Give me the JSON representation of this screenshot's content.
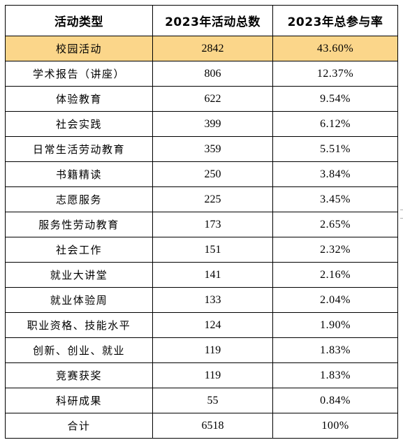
{
  "table": {
    "headers": [
      "活动类型",
      "2023年活动总数",
      "2023年总参与率"
    ],
    "rows": [
      {
        "type": "校园活动",
        "count": "2842",
        "rate": "43.60%"
      },
      {
        "type": "学术报告（讲座）",
        "count": "806",
        "rate": "12.37%"
      },
      {
        "type": "体验教育",
        "count": "622",
        "rate": "9.54%"
      },
      {
        "type": "社会实践",
        "count": "399",
        "rate": "6.12%"
      },
      {
        "type": "日常生活劳动教育",
        "count": "359",
        "rate": "5.51%"
      },
      {
        "type": "书籍精读",
        "count": "250",
        "rate": "3.84%"
      },
      {
        "type": "志愿服务",
        "count": "225",
        "rate": "3.45%"
      },
      {
        "type": "服务性劳动教育",
        "count": "173",
        "rate": "2.65%"
      },
      {
        "type": "社会工作",
        "count": "151",
        "rate": "2.32%"
      },
      {
        "type": "就业大讲堂",
        "count": "141",
        "rate": "2.16%"
      },
      {
        "type": "就业体验周",
        "count": "133",
        "rate": "2.04%"
      },
      {
        "type": "职业资格、技能水平",
        "count": "124",
        "rate": "1.90%"
      },
      {
        "type": "创新、创业、就业",
        "count": "119",
        "rate": "1.83%"
      },
      {
        "type": "竞赛获奖",
        "count": "119",
        "rate": "1.83%"
      },
      {
        "type": "科研成果",
        "count": "55",
        "rate": "0.84%"
      }
    ],
    "total": {
      "type": "合计",
      "count": "6518",
      "rate": "100%"
    },
    "highlight_color": "#fbd68a"
  }
}
